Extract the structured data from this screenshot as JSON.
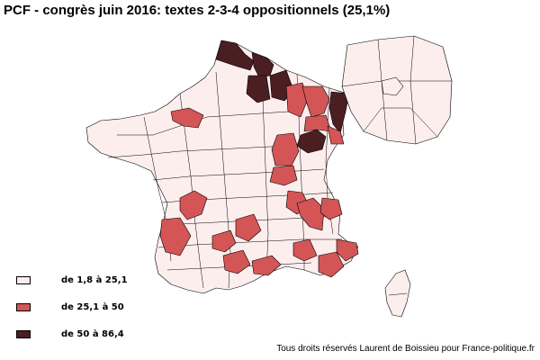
{
  "title": "PCF - congrès juin 2016: textes 2-3-4 oppositionnels (25,1%)",
  "legend": {
    "items": [
      {
        "label": "de 1,8 à 25,1",
        "color": "#fdeeee"
      },
      {
        "label": "de 25,1 à 50",
        "color": "#d45556"
      },
      {
        "label": "de 50 à 86,4",
        "color": "#4b1e22"
      }
    ]
  },
  "credit": "Tous droits réservés Laurent de Boissieu pour France-politique.fr",
  "colors": {
    "low": "#fdeeee",
    "mid": "#d45556",
    "high": "#4b1e22",
    "border": "#000000"
  },
  "map_regions": {
    "high_examples": [
      "Nord",
      "Pas-de-Calais",
      "Aisne",
      "Ardennes",
      "Meurthe-et-Moselle",
      "Haute-Marne"
    ],
    "mid_examples": [
      "Seine-Maritime",
      "Marne",
      "Meuse",
      "Moselle",
      "Vosges",
      "Saône-et-Loire",
      "Allier",
      "Loire",
      "Isère",
      "Dordogne",
      "Landes",
      "Lot",
      "Aveyron",
      "Gard",
      "Hérault",
      "Bouches-du-Rhône",
      "Var",
      "Haute-Garonne",
      "Ariège",
      "Pyrénées-Orientales"
    ]
  }
}
